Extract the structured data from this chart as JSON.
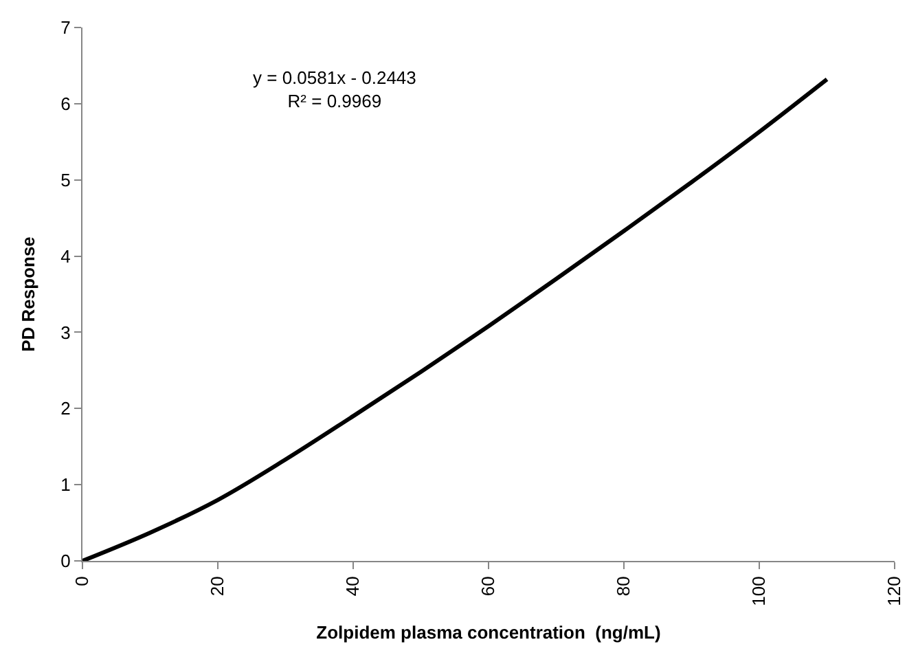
{
  "chart_data": {
    "type": "line",
    "xlabel": "Zolpidem plasma concentration  (ng/mL)",
    "ylabel": "PD Response",
    "x": [
      0,
      10,
      20,
      30,
      40,
      50,
      60,
      70,
      80,
      90,
      100,
      110
    ],
    "series": [
      {
        "color": "#000000",
        "values": [
          0,
          0.37,
          0.8,
          1.33,
          1.9,
          2.48,
          3.08,
          3.7,
          4.33,
          4.97,
          5.63,
          6.32
        ]
      }
    ],
    "annotations": [
      "y = 0.0581x - 0.2443\nR² = 0.9969"
    ],
    "xlim": [
      0,
      120
    ],
    "xticks": [
      0,
      20,
      40,
      60,
      80,
      100,
      120
    ],
    "ylim": [
      0,
      7
    ],
    "yticks": [
      0,
      1,
      2,
      3,
      4,
      5,
      6,
      7
    ],
    "grid": false,
    "legend": false,
    "marker": "none",
    "line_style": "solid"
  }
}
